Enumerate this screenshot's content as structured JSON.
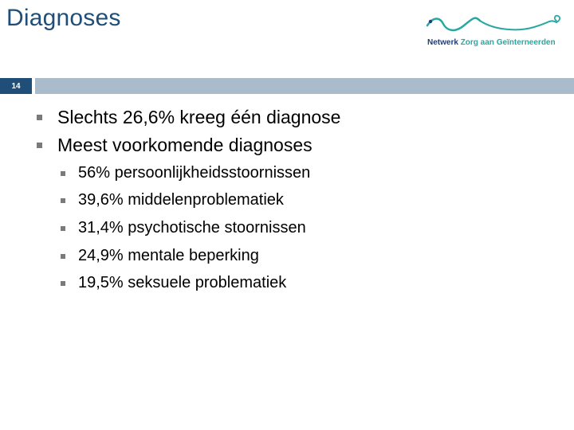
{
  "slide": {
    "title": "Diagnoses",
    "number": "14"
  },
  "logo": {
    "part1": "Netwerk ",
    "part2": "Zorg aan Geïnterneerden"
  },
  "bullets": [
    {
      "text": "Slechts 26,6% kreeg één diagnose"
    },
    {
      "text": "Meest voorkomende diagnoses"
    }
  ],
  "sub_bullets": [
    {
      "text": "56% persoonlijkheidsstoornissen"
    },
    {
      "text": "39,6% middelenproblematiek"
    },
    {
      "text": "31,4% psychotische stoornissen"
    },
    {
      "text": "24,9% mentale beperking"
    },
    {
      "text": "19,5% seksuele problematiek"
    }
  ],
  "colors": {
    "title": "#1f4e79",
    "header_bar": "#aabbcc",
    "number_box": "#1f4e79",
    "logo_navy": "#1f3f7a",
    "logo_teal": "#2aa7a0"
  }
}
